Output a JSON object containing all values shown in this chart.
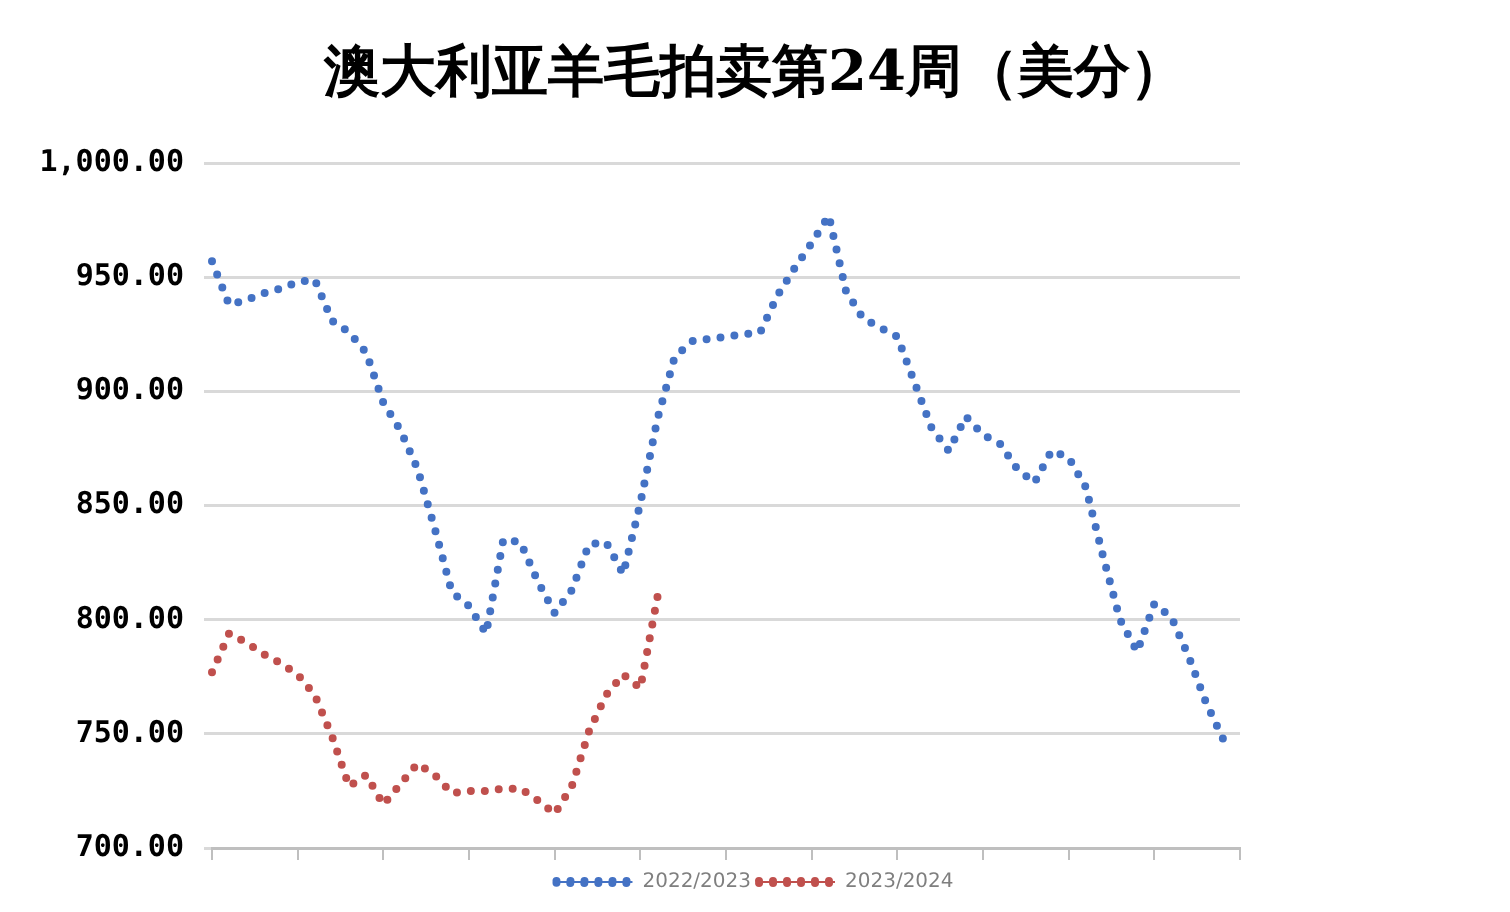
{
  "chart_data": {
    "type": "line",
    "title": "澳大利亚羊毛拍卖第24周（美分）",
    "categories": [
      null,
      null,
      null,
      null,
      null,
      null,
      null,
      null,
      null,
      null,
      null,
      null,
      null,
      null,
      null,
      null,
      null,
      null,
      null,
      null,
      null,
      null,
      null,
      null,
      null,
      null,
      null,
      null,
      null,
      null,
      null,
      null,
      null,
      null,
      null,
      null,
      null,
      null,
      null,
      null,
      null,
      null,
      null,
      null,
      null,
      null,
      null,
      null,
      null,
      null,
      null,
      null,
      null,
      null,
      null,
      null,
      null,
      null,
      null,
      null,
      null
    ],
    "series": [
      {
        "name": "2022/2023",
        "color": "#4472c4",
        "values": [
          957,
          938,
          940,
          943,
          945,
          948,
          949,
          931,
          926,
          917,
          895,
          883,
          866,
          840,
          812,
          806,
          794,
          835,
          834,
          817,
          803,
          813,
          833,
          834,
          820,
          851,
          888,
          915,
          922,
          923,
          924,
          925,
          926,
          942,
          954,
          965,
          977,
          944,
          932,
          928,
          924,
          904,
          884,
          874,
          889,
          881,
          877,
          866,
          860,
          874,
          871,
          858,
          828,
          800,
          786,
          807,
          801,
          784,
          764,
          748,
          null
        ]
      },
      {
        "name": "2023/2024",
        "color": "#c0504d",
        "values": [
          777,
          794,
          790,
          785,
          781,
          776,
          767,
          749,
          727,
          732,
          719,
          728,
          737,
          732,
          724,
          725,
          725,
          726,
          726,
          721,
          715,
          727,
          751,
          767,
          776,
          770,
          810,
          null,
          null,
          null,
          null,
          null,
          null,
          null,
          null,
          null,
          null,
          null,
          null,
          null,
          null,
          null,
          null,
          null,
          null,
          null,
          null,
          null,
          null,
          null,
          null,
          null,
          null,
          null,
          null,
          null,
          null,
          null,
          null,
          null,
          null
        ]
      }
    ],
    "ylim": [
      700,
      1000
    ],
    "yticks": [
      {
        "value": 700,
        "label": "700.00"
      },
      {
        "value": 750,
        "label": "750.00"
      },
      {
        "value": 800,
        "label": "800.00"
      },
      {
        "value": 850,
        "label": "850.00"
      },
      {
        "value": 900,
        "label": "900.00"
      },
      {
        "value": 950,
        "label": "950.00"
      },
      {
        "value": 1000,
        "label": "1,000.00"
      }
    ],
    "grid": "y",
    "legend": "bottom",
    "marker": "none",
    "line_style": "dotted"
  }
}
